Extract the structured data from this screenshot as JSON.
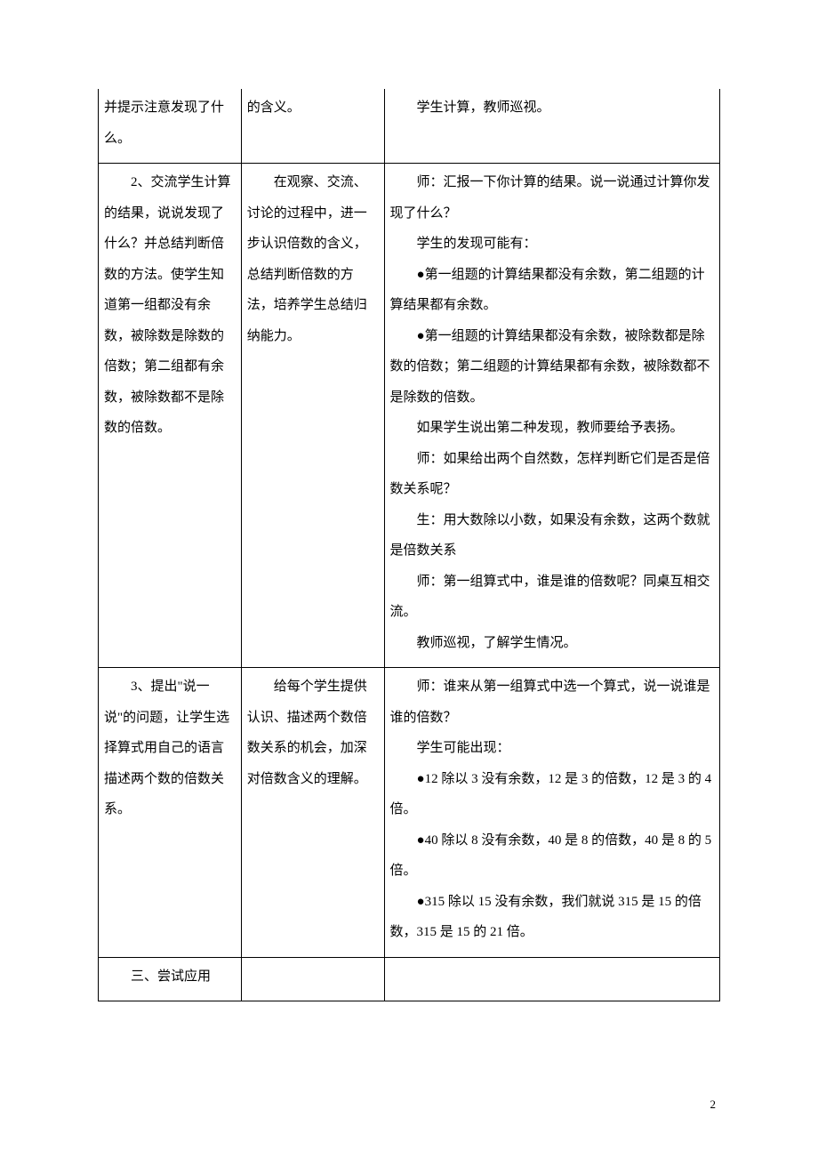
{
  "page": {
    "number": "2"
  },
  "rows": [
    {
      "col1": [
        {
          "indent": false,
          "text": "并提示注意发现了什么。"
        }
      ],
      "col2": [
        {
          "indent": false,
          "text": "的含义。"
        }
      ],
      "col3": [
        {
          "indent": true,
          "text": "学生计算，教师巡视。"
        }
      ]
    },
    {
      "col1": [
        {
          "indent": true,
          "text": "2、交流学生计算的结果，说说发现了什么？并总结判断倍数的方法。使学生知道第一组都没有余数，被除数是除数的倍数；第二组都有余数，被除数都不是除数的倍数。"
        }
      ],
      "col2": [
        {
          "indent": true,
          "text": "在观察、交流、讨论的过程中，进一步认识倍数的含义，总结判断倍数的方法，培养学生总结归纳能力。"
        }
      ],
      "col3": [
        {
          "indent": true,
          "text": "师：汇报一下你计算的结果。说一说通过计算你发现了什么？"
        },
        {
          "indent": true,
          "text": "学生的发现可能有："
        },
        {
          "indent": true,
          "text": "●第一组题的计算结果都没有余数，第二组题的计算结果都有余数。"
        },
        {
          "indent": true,
          "text": "●第一组题的计算结果都没有余数，被除数都是除数的倍数；第二组题的计算结果都有余数，被除数都不是除数的倍数。"
        },
        {
          "indent": true,
          "text": "如果学生说出第二种发现，教师要给予表扬。"
        },
        {
          "indent": true,
          "text": "师：如果给出两个自然数，怎样判断它们是否是倍数关系呢？"
        },
        {
          "indent": true,
          "text": "生：用大数除以小数，如果没有余数，这两个数就是倍数关系"
        },
        {
          "indent": true,
          "text": "师：第一组算式中，谁是谁的倍数呢？同桌互相交流。"
        },
        {
          "indent": true,
          "text": "教师巡视，了解学生情况。"
        }
      ]
    },
    {
      "col1": [
        {
          "indent": true,
          "text": "3、提出\"说一说\"的问题，让学生选择算式用自己的语言描述两个数的倍数关系。"
        }
      ],
      "col2": [
        {
          "indent": true,
          "text": "给每个学生提供认识、描述两个数倍数关系的机会，加深对倍数含义的理解。"
        }
      ],
      "col3": [
        {
          "indent": true,
          "text": "师：谁来从第一组算式中选一个算式，说一说谁是谁的倍数？"
        },
        {
          "indent": true,
          "text": "学生可能出现："
        },
        {
          "indent": true,
          "text": "●12 除以 3 没有余数，12 是 3 的倍数，12 是 3 的 4 倍。"
        },
        {
          "indent": true,
          "text": "●40 除以 8 没有余数，40 是 8 的倍数，40 是 8 的 5 倍。"
        },
        {
          "indent": true,
          "text": "●315 除以 15 没有余数，我们就说 315 是 15 的倍数，315 是 15 的 21 倍。"
        }
      ]
    },
    {
      "col1": [
        {
          "indent": true,
          "text": "三、尝试应用"
        }
      ],
      "col2": [],
      "col3": []
    }
  ]
}
